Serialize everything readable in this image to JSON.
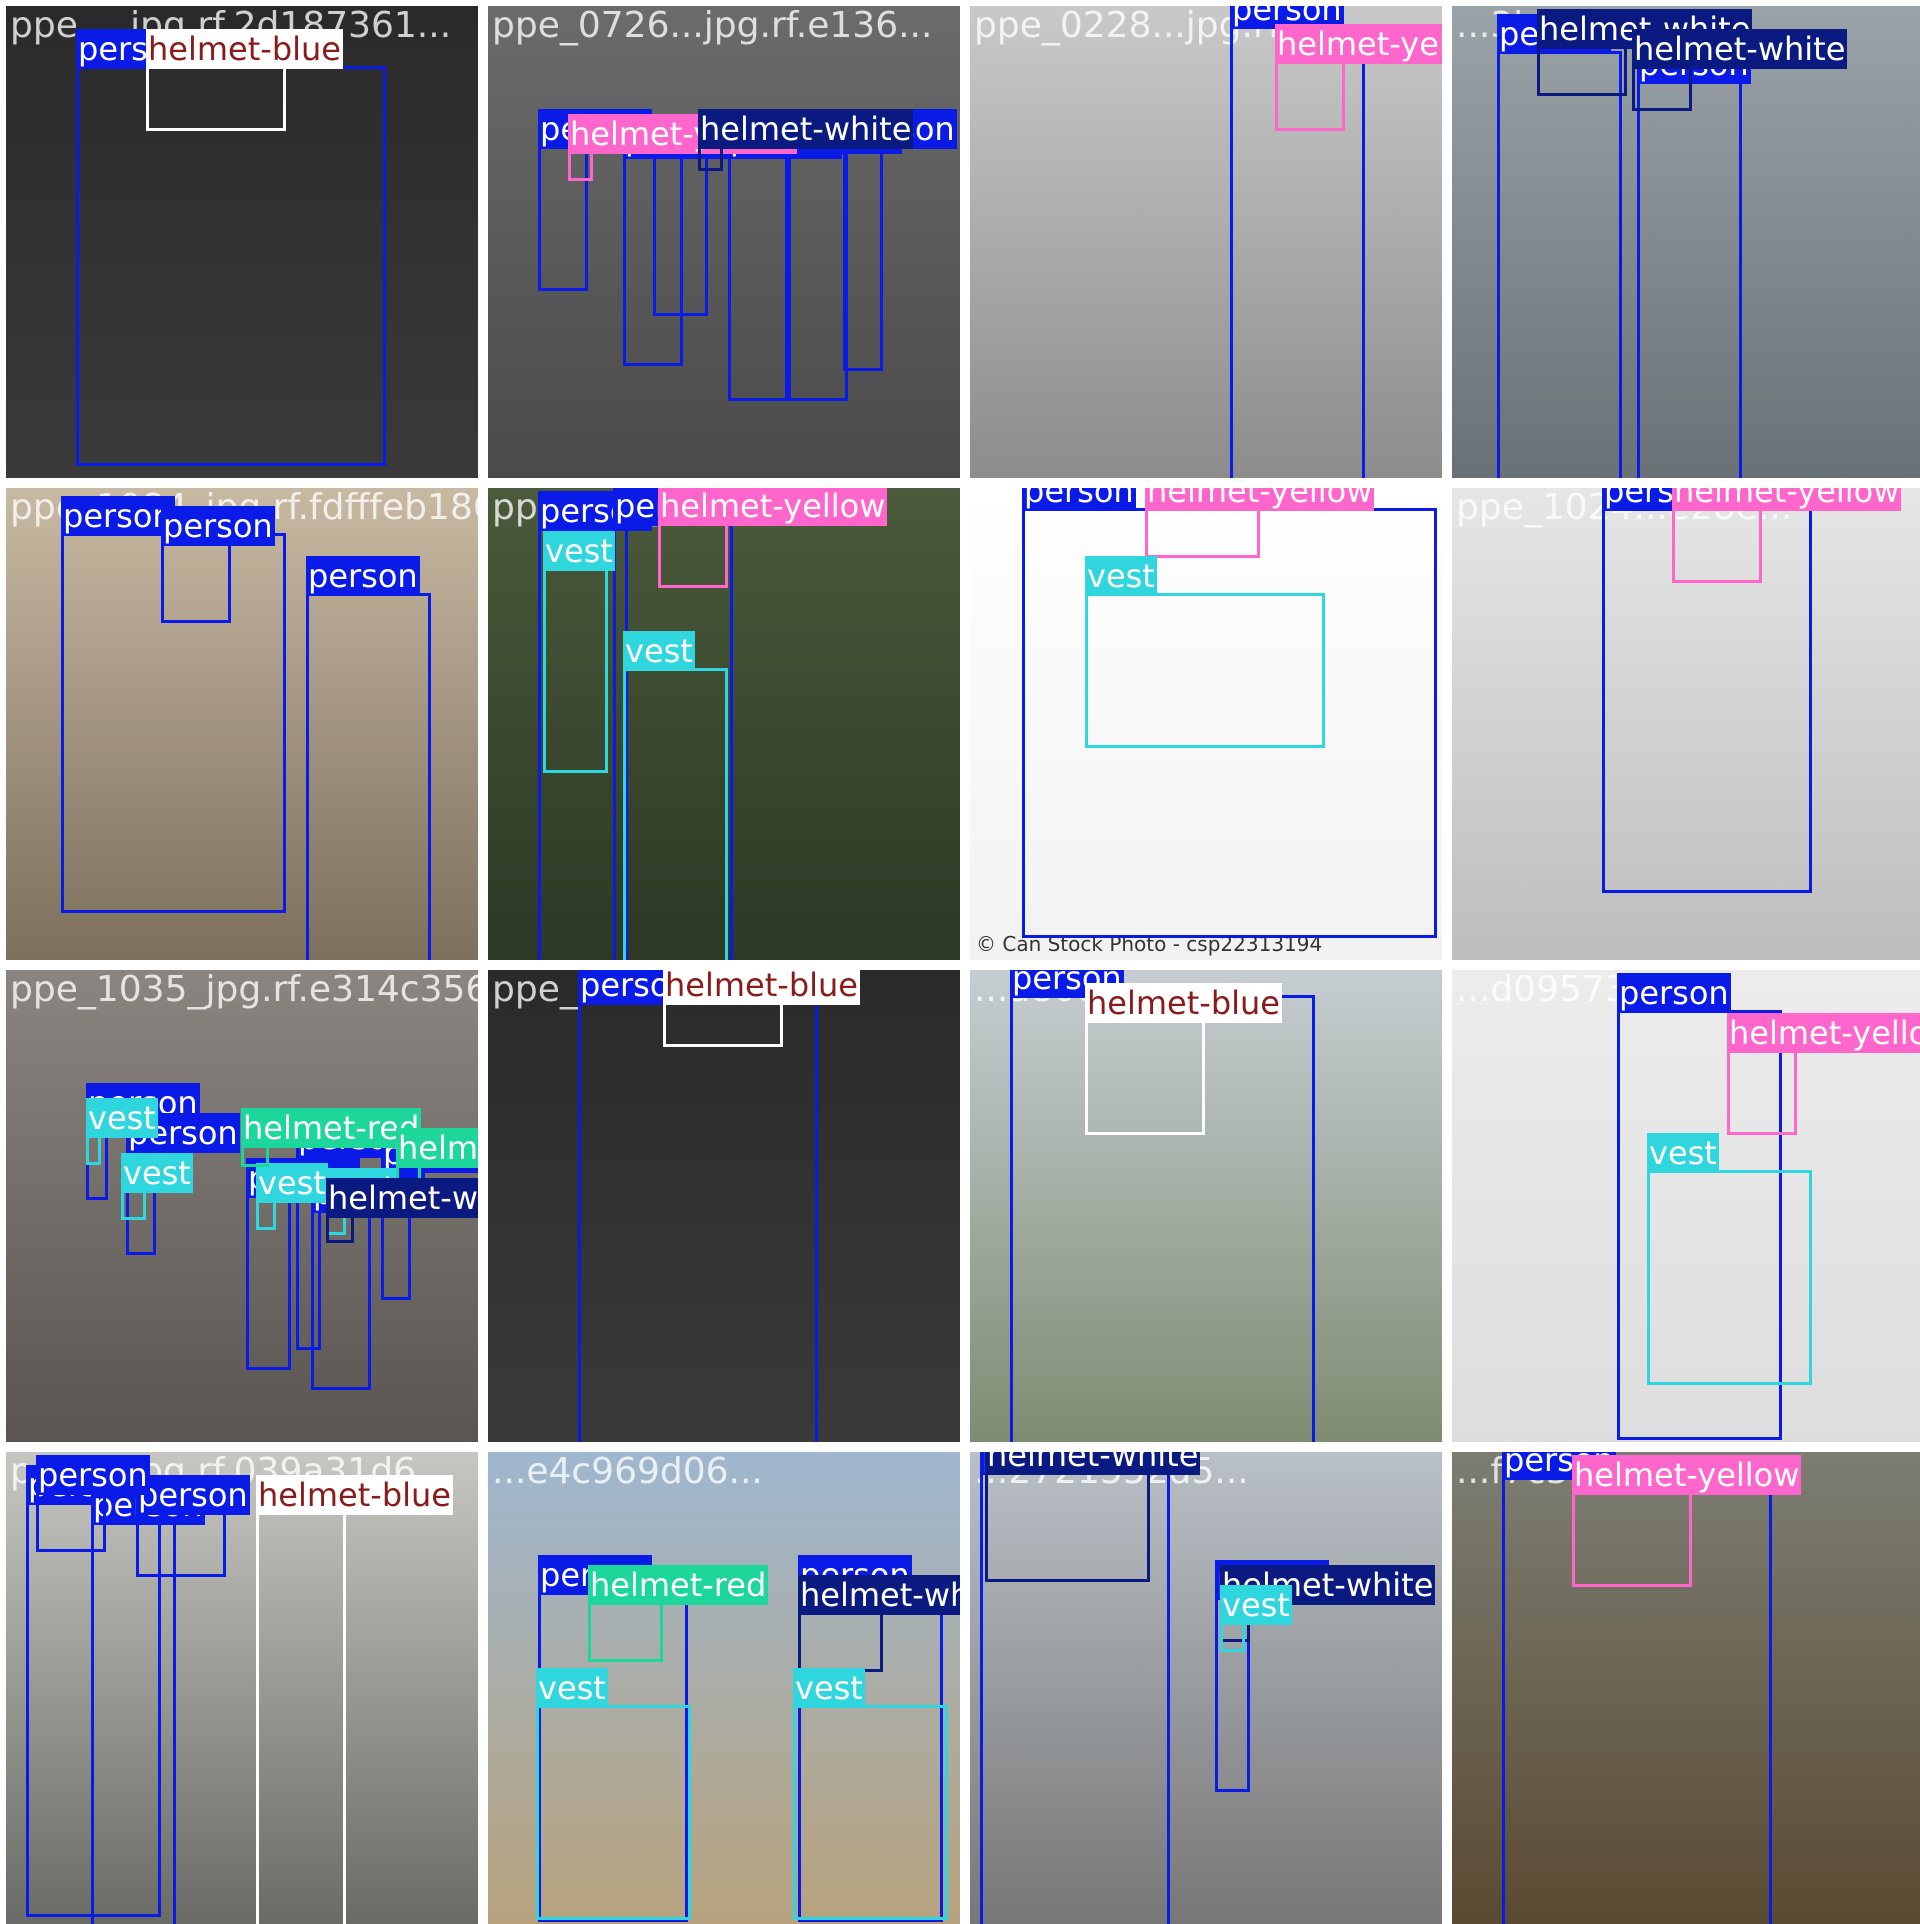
{
  "grid": {
    "rows": 4,
    "cols": 4
  },
  "class_colors": {
    "person": "#0a1be8",
    "helmet-blue": "#ffffff",
    "helmet-yellow": "#ff66cc",
    "helmet-white": "#0b1a80",
    "helmet-red": "#1dd69a",
    "vest": "#2fd6de"
  },
  "label_text_colors": {
    "person": "#ffffff",
    "helmet-blue": "#8b1a1a",
    "helmet-yellow": "#ffffff",
    "helmet-white": "#ffffff",
    "helmet-red": "#ffffff",
    "vest": "#ffffff"
  },
  "tiles": [
    {
      "title": "ppe_...jpg.rf.2d187361...",
      "bg": [
        "#2a2a2a",
        "#3a3a3a"
      ],
      "boxes": [
        {
          "label": "person",
          "cls": "person"
        },
        {
          "label": "helmet-blue",
          "cls": "helmet-blue"
        }
      ]
    },
    {
      "title": "ppe_0726...jpg.rf.e136...",
      "bg": [
        "#6b6b6b",
        "#4a4a4a"
      ],
      "boxes": [
        {
          "label": "person",
          "cls": "person"
        },
        {
          "label": "person",
          "cls": "person"
        },
        {
          "label": "person",
          "cls": "person"
        },
        {
          "label": "person",
          "cls": "person"
        },
        {
          "label": "person",
          "cls": "person"
        },
        {
          "label": "person",
          "cls": "person"
        },
        {
          "label": "helmet-yellow",
          "cls": "helmet-yellow"
        },
        {
          "label": "helmet-white",
          "cls": "helmet-white"
        }
      ]
    },
    {
      "title": "ppe_0228...jpg.rf...",
      "bg": [
        "#c9c9c9",
        "#8c8c8c"
      ],
      "boxes": [
        {
          "label": "person",
          "cls": "person"
        },
        {
          "label": "helmet-yellow",
          "cls": "helmet-yellow"
        }
      ]
    },
    {
      "title": "...3bbf176e1...",
      "bg": [
        "#9aa3a8",
        "#6a7176"
      ],
      "boxes": [
        {
          "label": "person",
          "cls": "person"
        },
        {
          "label": "person",
          "cls": "person"
        },
        {
          "label": "helmet-white",
          "cls": "helmet-white"
        },
        {
          "label": "helmet-white",
          "cls": "helmet-white"
        }
      ]
    },
    {
      "title": "ppe_1084_jpg.rf.fdfffeb186ee...",
      "bg": [
        "#c7b9a2",
        "#7d705c"
      ],
      "boxes": [
        {
          "label": "person",
          "cls": "person"
        },
        {
          "label": "person",
          "cls": "person"
        },
        {
          "label": "person",
          "cls": "person"
        }
      ]
    },
    {
      "title": "ppe_...jpg.rf...",
      "bg": [
        "#4a5a3a",
        "#2d3825"
      ],
      "boxes": [
        {
          "label": "person",
          "cls": "person"
        },
        {
          "label": "person",
          "cls": "person"
        },
        {
          "label": "helmet-yellow",
          "cls": "helmet-yellow"
        },
        {
          "label": "vest",
          "cls": "vest"
        },
        {
          "label": "vest",
          "cls": "vest"
        }
      ]
    },
    {
      "title": "...df804b5953...",
      "bg": [
        "#ffffff",
        "#f2f2f2"
      ],
      "caption": "© Can Stock Photo - csp22313194",
      "boxes": [
        {
          "label": "person",
          "cls": "person"
        },
        {
          "label": "helmet-yellow",
          "cls": "helmet-yellow"
        },
        {
          "label": "vest",
          "cls": "vest"
        }
      ]
    },
    {
      "title": "ppe_1024...e28e...",
      "bg": [
        "#e6e6e6",
        "#bdbdbd"
      ],
      "boxes": [
        {
          "label": "person",
          "cls": "person"
        },
        {
          "label": "helmet-yellow",
          "cls": "helmet-yellow"
        }
      ]
    },
    {
      "title": "ppe_1035_jpg.rf.e314c356...",
      "bg": [
        "#8a8580",
        "#5a5550"
      ],
      "boxes": [
        {
          "label": "person",
          "cls": "person"
        },
        {
          "label": "person",
          "cls": "person"
        },
        {
          "label": "person",
          "cls": "person"
        },
        {
          "label": "person",
          "cls": "person"
        },
        {
          "label": "person",
          "cls": "person"
        },
        {
          "label": "person",
          "cls": "person"
        },
        {
          "label": "vest",
          "cls": "vest"
        },
        {
          "label": "vest",
          "cls": "vest"
        },
        {
          "label": "vest",
          "cls": "vest"
        },
        {
          "label": "vest",
          "cls": "vest"
        },
        {
          "label": "helmet-red",
          "cls": "helmet-red"
        },
        {
          "label": "helmet-red",
          "cls": "helmet-red"
        },
        {
          "label": "helmet-white",
          "cls": "helmet-white"
        }
      ]
    },
    {
      "title": "ppe_...e7d8d02...",
      "bg": [
        "#2a2a2a",
        "#3a3a3a"
      ],
      "boxes": [
        {
          "label": "person",
          "cls": "person"
        },
        {
          "label": "helmet-blue",
          "cls": "helmet-blue"
        }
      ]
    },
    {
      "title": "...a808a...",
      "bg": [
        "#c6cdd2",
        "#7e8c72"
      ],
      "boxes": [
        {
          "label": "person",
          "cls": "person"
        },
        {
          "label": "helmet-blue",
          "cls": "helmet-blue"
        }
      ]
    },
    {
      "title": "...d0957315a",
      "bg": [
        "#ececec",
        "#dddddd"
      ],
      "boxes": [
        {
          "label": "person",
          "cls": "person"
        },
        {
          "label": "helmet-yellow",
          "cls": "helmet-yellow"
        },
        {
          "label": "vest",
          "cls": "vest"
        }
      ]
    },
    {
      "title": "ppe_...jpg.rf.039a31d6...",
      "bg": [
        "#c7c7c2",
        "#6a6a66"
      ],
      "boxes": [
        {
          "label": "person",
          "cls": "person"
        },
        {
          "label": "person",
          "cls": "person"
        },
        {
          "label": "person",
          "cls": "person"
        },
        {
          "label": "person",
          "cls": "person"
        },
        {
          "label": "helmet-blue",
          "cls": "helmet-blue"
        }
      ]
    },
    {
      "title": "...e4c969d06...",
      "bg": [
        "#9fb7cf",
        "#b7a27d"
      ],
      "boxes": [
        {
          "label": "person",
          "cls": "person"
        },
        {
          "label": "person",
          "cls": "person"
        },
        {
          "label": "helmet-red",
          "cls": "helmet-red"
        },
        {
          "label": "helmet-white",
          "cls": "helmet-white"
        },
        {
          "label": "vest",
          "cls": "vest"
        },
        {
          "label": "vest",
          "cls": "vest"
        }
      ]
    },
    {
      "title": "...2721552d5...",
      "bg": [
        "#b9c0c6",
        "#777777"
      ],
      "boxes": [
        {
          "label": "person",
          "cls": "person"
        },
        {
          "label": "person",
          "cls": "person"
        },
        {
          "label": "helmet-white",
          "cls": "helmet-white"
        },
        {
          "label": "helmet-white",
          "cls": "helmet-white"
        },
        {
          "label": "vest",
          "cls": "vest"
        }
      ]
    },
    {
      "title": "...f7c3b1a",
      "bg": [
        "#7c7e73",
        "#5a4a32"
      ],
      "boxes": [
        {
          "label": "person",
          "cls": "person"
        },
        {
          "label": "helmet-yellow",
          "cls": "helmet-yellow"
        }
      ]
    }
  ]
}
